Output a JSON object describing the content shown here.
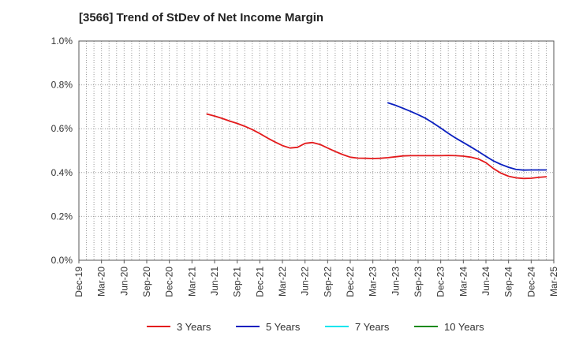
{
  "chart_data": {
    "type": "line",
    "title": "[3566]  Trend of StDev of Net Income Margin",
    "xlabel": "",
    "ylabel": "",
    "x_ticks": [
      "Dec-19",
      "Mar-20",
      "Jun-20",
      "Sep-20",
      "Dec-20",
      "Mar-21",
      "Jun-21",
      "Sep-21",
      "Dec-21",
      "Mar-22",
      "Jun-22",
      "Sep-22",
      "Dec-22",
      "Mar-23",
      "Jun-23",
      "Sep-23",
      "Dec-23",
      "Mar-24",
      "Jun-24",
      "Sep-24",
      "Dec-24",
      "Mar-25"
    ],
    "y_ticks": [
      "0.0%",
      "0.2%",
      "0.4%",
      "0.6%",
      "0.8%",
      "1.0%"
    ],
    "ylim": [
      0,
      1.0
    ],
    "grid": true,
    "legend_position": "bottom",
    "x_months": [
      "Dec-19",
      "Jan-20",
      "Feb-20",
      "Mar-20",
      "Apr-20",
      "May-20",
      "Jun-20",
      "Jul-20",
      "Aug-20",
      "Sep-20",
      "Oct-20",
      "Nov-20",
      "Dec-20",
      "Jan-21",
      "Feb-21",
      "Mar-21",
      "Apr-21",
      "May-21",
      "Jun-21",
      "Jul-21",
      "Aug-21",
      "Sep-21",
      "Oct-21",
      "Nov-21",
      "Dec-21",
      "Jan-22",
      "Feb-22",
      "Mar-22",
      "Apr-22",
      "May-22",
      "Jun-22",
      "Jul-22",
      "Aug-22",
      "Sep-22",
      "Oct-22",
      "Nov-22",
      "Dec-22",
      "Jan-23",
      "Feb-23",
      "Mar-23",
      "Apr-23",
      "May-23",
      "Jun-23",
      "Jul-23",
      "Aug-23",
      "Sep-23",
      "Oct-23",
      "Nov-23",
      "Dec-23",
      "Jan-24",
      "Feb-24",
      "Mar-24",
      "Apr-24",
      "May-24",
      "Jun-24",
      "Jul-24",
      "Aug-24",
      "Sep-24",
      "Oct-24",
      "Nov-24",
      "Dec-24",
      "Jan-25",
      "Feb-25",
      "Mar-25"
    ],
    "series": [
      {
        "name": "3 Years",
        "color": "#e31a1c",
        "points": [
          [
            "May-21",
            0.667
          ],
          [
            "Jun-21",
            0.658
          ],
          [
            "Jul-21",
            0.647
          ],
          [
            "Aug-21",
            0.635
          ],
          [
            "Sep-21",
            0.624
          ],
          [
            "Oct-21",
            0.611
          ],
          [
            "Nov-21",
            0.596
          ],
          [
            "Dec-21",
            0.578
          ],
          [
            "Jan-22",
            0.558
          ],
          [
            "Feb-22",
            0.54
          ],
          [
            "Mar-22",
            0.523
          ],
          [
            "Apr-22",
            0.512
          ],
          [
            "May-22",
            0.515
          ],
          [
            "Jun-22",
            0.533
          ],
          [
            "Jul-22",
            0.537
          ],
          [
            "Aug-22",
            0.528
          ],
          [
            "Sep-22",
            0.512
          ],
          [
            "Oct-22",
            0.496
          ],
          [
            "Nov-22",
            0.482
          ],
          [
            "Dec-22",
            0.47
          ],
          [
            "Jan-23",
            0.466
          ],
          [
            "Feb-23",
            0.465
          ],
          [
            "Mar-23",
            0.464
          ],
          [
            "Apr-23",
            0.465
          ],
          [
            "May-23",
            0.468
          ],
          [
            "Jun-23",
            0.472
          ],
          [
            "Jul-23",
            0.476
          ],
          [
            "Aug-23",
            0.477
          ],
          [
            "Sep-23",
            0.477
          ],
          [
            "Oct-23",
            0.477
          ],
          [
            "Nov-23",
            0.477
          ],
          [
            "Dec-23",
            0.477
          ],
          [
            "Jan-24",
            0.478
          ],
          [
            "Feb-24",
            0.477
          ],
          [
            "Mar-24",
            0.475
          ],
          [
            "Apr-24",
            0.47
          ],
          [
            "May-24",
            0.462
          ],
          [
            "Jun-24",
            0.445
          ],
          [
            "Jul-24",
            0.418
          ],
          [
            "Aug-24",
            0.397
          ],
          [
            "Sep-24",
            0.383
          ],
          [
            "Oct-24",
            0.376
          ],
          [
            "Nov-24",
            0.373
          ],
          [
            "Dec-24",
            0.374
          ],
          [
            "Jan-25",
            0.378
          ],
          [
            "Feb-25",
            0.381
          ]
        ]
      },
      {
        "name": "5 Years",
        "color": "#0a1fbf",
        "points": [
          [
            "May-23",
            0.718
          ],
          [
            "Jun-23",
            0.707
          ],
          [
            "Jul-23",
            0.693
          ],
          [
            "Aug-23",
            0.679
          ],
          [
            "Sep-23",
            0.664
          ],
          [
            "Oct-23",
            0.647
          ],
          [
            "Nov-23",
            0.626
          ],
          [
            "Dec-23",
            0.603
          ],
          [
            "Jan-24",
            0.579
          ],
          [
            "Feb-24",
            0.557
          ],
          [
            "Mar-24",
            0.537
          ],
          [
            "Apr-24",
            0.517
          ],
          [
            "May-24",
            0.496
          ],
          [
            "Jun-24",
            0.474
          ],
          [
            "Jul-24",
            0.453
          ],
          [
            "Aug-24",
            0.437
          ],
          [
            "Sep-24",
            0.424
          ],
          [
            "Oct-24",
            0.414
          ],
          [
            "Nov-24",
            0.411
          ],
          [
            "Dec-24",
            0.412
          ],
          [
            "Jan-25",
            0.412
          ],
          [
            "Feb-25",
            0.412
          ]
        ]
      },
      {
        "name": "7 Years",
        "color": "#00e5ee",
        "points": []
      },
      {
        "name": "10 Years",
        "color": "#1a8a1a",
        "points": []
      }
    ]
  }
}
